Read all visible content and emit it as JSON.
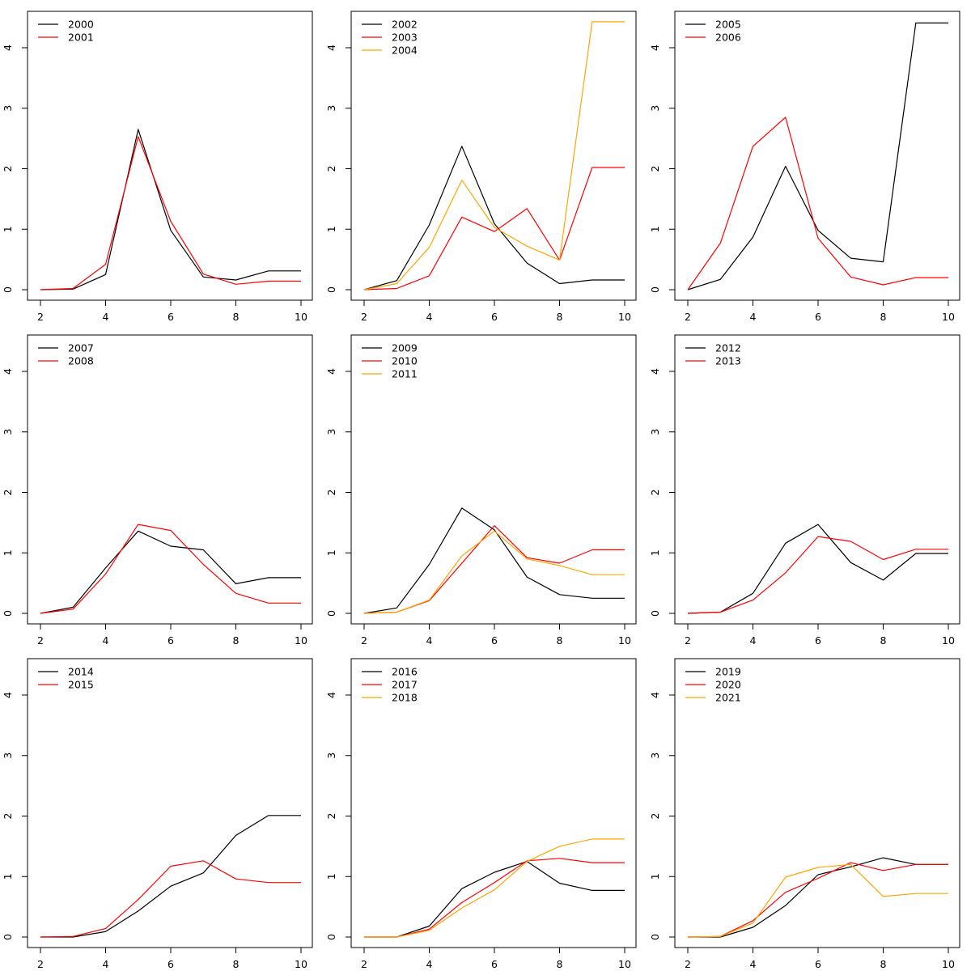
{
  "chart_data": [
    {
      "type": "line",
      "x": [
        2,
        3,
        4,
        5,
        6,
        7,
        8,
        9,
        10
      ],
      "xlim": [
        2,
        10
      ],
      "ylim": [
        0,
        4.4
      ],
      "xticks": [
        "2",
        "4",
        "6",
        "8",
        "10"
      ],
      "yticks": [
        "0",
        "1",
        "2",
        "3",
        "4"
      ],
      "legend_position": "top-left",
      "series": [
        {
          "name": "2000",
          "color": "#000000",
          "values": [
            0,
            0.01,
            0.25,
            2.65,
            0.98,
            0.21,
            0.16,
            0.31,
            0.31
          ]
        },
        {
          "name": "2001",
          "color": "#ff0000",
          "values": [
            0,
            0.02,
            0.42,
            2.53,
            1.13,
            0.26,
            0.09,
            0.14,
            0.14
          ]
        }
      ]
    },
    {
      "type": "line",
      "x": [
        2,
        3,
        4,
        5,
        6,
        7,
        8,
        9,
        10
      ],
      "xlim": [
        2,
        10
      ],
      "ylim": [
        0,
        4.4
      ],
      "xticks": [
        "2",
        "4",
        "6",
        "8",
        "10"
      ],
      "yticks": [
        "0",
        "1",
        "2",
        "3",
        "4"
      ],
      "legend_position": "top-left",
      "series": [
        {
          "name": "2002",
          "color": "#000000",
          "values": [
            0,
            0.15,
            1.07,
            2.37,
            1.09,
            0.44,
            0.1,
            0.16,
            0.16
          ]
        },
        {
          "name": "2003",
          "color": "#ff0000",
          "values": [
            0,
            0.02,
            0.23,
            1.2,
            0.96,
            1.34,
            0.49,
            2.02,
            2.02
          ]
        },
        {
          "name": "2004",
          "color": "#ffa500",
          "values": [
            0,
            0.1,
            0.7,
            1.81,
            1.03,
            0.72,
            0.49,
            4.43,
            4.43
          ]
        }
      ]
    },
    {
      "type": "line",
      "x": [
        2,
        3,
        4,
        5,
        6,
        7,
        8,
        9,
        10
      ],
      "xlim": [
        2,
        10
      ],
      "ylim": [
        0,
        4.4
      ],
      "xticks": [
        "2",
        "4",
        "6",
        "8",
        "10"
      ],
      "yticks": [
        "0",
        "1",
        "2",
        "3",
        "4"
      ],
      "legend_position": "top-left",
      "series": [
        {
          "name": "2005",
          "color": "#000000",
          "values": [
            0,
            0.17,
            0.87,
            2.04,
            0.98,
            0.52,
            0.46,
            4.41,
            4.41
          ]
        },
        {
          "name": "2006",
          "color": "#ff0000",
          "values": [
            0,
            0.77,
            2.37,
            2.85,
            0.85,
            0.21,
            0.08,
            0.2,
            0.2
          ]
        }
      ]
    },
    {
      "type": "line",
      "x": [
        2,
        3,
        4,
        5,
        6,
        7,
        8,
        9,
        10
      ],
      "xlim": [
        2,
        10
      ],
      "ylim": [
        0,
        4.4
      ],
      "xticks": [
        "2",
        "4",
        "6",
        "8",
        "10"
      ],
      "yticks": [
        "0",
        "1",
        "2",
        "3",
        "4"
      ],
      "legend_position": "top-left",
      "series": [
        {
          "name": "2007",
          "color": "#000000",
          "values": [
            0,
            0.1,
            0.75,
            1.36,
            1.11,
            1.05,
            0.49,
            0.59,
            0.59
          ]
        },
        {
          "name": "2008",
          "color": "#ff0000",
          "values": [
            0,
            0.07,
            0.65,
            1.47,
            1.37,
            0.81,
            0.33,
            0.17,
            0.17
          ]
        }
      ]
    },
    {
      "type": "line",
      "x": [
        2,
        3,
        4,
        5,
        6,
        7,
        8,
        9,
        10
      ],
      "xlim": [
        2,
        10
      ],
      "ylim": [
        0,
        4.4
      ],
      "xticks": [
        "2",
        "4",
        "6",
        "8",
        "10"
      ],
      "yticks": [
        "0",
        "1",
        "2",
        "3",
        "4"
      ],
      "legend_position": "top-left",
      "series": [
        {
          "name": "2009",
          "color": "#000000",
          "values": [
            0,
            0.09,
            0.81,
            1.74,
            1.38,
            0.6,
            0.31,
            0.25,
            0.25
          ]
        },
        {
          "name": "2010",
          "color": "#ff0000",
          "values": [
            0,
            0.02,
            0.21,
            0.83,
            1.45,
            0.92,
            0.83,
            1.05,
            1.05
          ]
        },
        {
          "name": "2011",
          "color": "#ffa500",
          "values": [
            0,
            0.02,
            0.22,
            0.95,
            1.36,
            0.9,
            0.79,
            0.64,
            0.64
          ]
        }
      ]
    },
    {
      "type": "line",
      "x": [
        2,
        3,
        4,
        5,
        6,
        7,
        8,
        9,
        10
      ],
      "xlim": [
        2,
        10
      ],
      "ylim": [
        0,
        4.4
      ],
      "xticks": [
        "2",
        "4",
        "6",
        "8",
        "10"
      ],
      "yticks": [
        "0",
        "1",
        "2",
        "3",
        "4"
      ],
      "legend_position": "top-left",
      "series": [
        {
          "name": "2012",
          "color": "#000000",
          "values": [
            0,
            0.02,
            0.33,
            1.16,
            1.47,
            0.84,
            0.55,
            0.99,
            0.99
          ]
        },
        {
          "name": "2013",
          "color": "#ff0000",
          "values": [
            0,
            0.02,
            0.22,
            0.67,
            1.27,
            1.19,
            0.89,
            1.06,
            1.06
          ]
        }
      ]
    },
    {
      "type": "line",
      "x": [
        2,
        3,
        4,
        5,
        6,
        7,
        8,
        9,
        10
      ],
      "xlim": [
        2,
        10
      ],
      "ylim": [
        0,
        4.4
      ],
      "xticks": [
        "2",
        "4",
        "6",
        "8",
        "10"
      ],
      "yticks": [
        "0",
        "1",
        "2",
        "3",
        "4"
      ],
      "legend_position": "top-left",
      "series": [
        {
          "name": "2014",
          "color": "#000000",
          "values": [
            0,
            0,
            0.09,
            0.43,
            0.84,
            1.06,
            1.68,
            2.01,
            2.01
          ]
        },
        {
          "name": "2015",
          "color": "#ff0000",
          "values": [
            0,
            0.01,
            0.14,
            0.62,
            1.17,
            1.26,
            0.96,
            0.9,
            0.9
          ]
        }
      ]
    },
    {
      "type": "line",
      "x": [
        2,
        3,
        4,
        5,
        6,
        7,
        8,
        9,
        10
      ],
      "xlim": [
        2,
        10
      ],
      "ylim": [
        0,
        4.4
      ],
      "xticks": [
        "2",
        "4",
        "6",
        "8",
        "10"
      ],
      "yticks": [
        "0",
        "1",
        "2",
        "3",
        "4"
      ],
      "legend_position": "top-left",
      "series": [
        {
          "name": "2016",
          "color": "#000000",
          "values": [
            0,
            0,
            0.18,
            0.8,
            1.07,
            1.25,
            0.89,
            0.77,
            0.77
          ]
        },
        {
          "name": "2017",
          "color": "#ff0000",
          "values": [
            0,
            0,
            0.13,
            0.57,
            0.9,
            1.26,
            1.3,
            1.23,
            1.23
          ]
        },
        {
          "name": "2018",
          "color": "#ffa500",
          "values": [
            0,
            0,
            0.11,
            0.48,
            0.78,
            1.25,
            1.5,
            1.62,
            1.62
          ]
        }
      ]
    },
    {
      "type": "line",
      "x": [
        2,
        3,
        4,
        5,
        6,
        7,
        8,
        9,
        10
      ],
      "xlim": [
        2,
        10
      ],
      "ylim": [
        0,
        4.4
      ],
      "xticks": [
        "2",
        "4",
        "6",
        "8",
        "10"
      ],
      "yticks": [
        "0",
        "1",
        "2",
        "3",
        "4"
      ],
      "legend_position": "top-left",
      "series": [
        {
          "name": "2019",
          "color": "#000000",
          "values": [
            0,
            0,
            0.16,
            0.52,
            1.03,
            1.16,
            1.31,
            1.2,
            1.2
          ]
        },
        {
          "name": "2020",
          "color": "#ff0000",
          "values": [
            0,
            0.01,
            0.27,
            0.74,
            0.97,
            1.23,
            1.1,
            1.2,
            1.2
          ]
        },
        {
          "name": "2021",
          "color": "#ffa500",
          "values": [
            0,
            0.01,
            0.23,
            0.99,
            1.15,
            1.2,
            0.67,
            0.72,
            0.72
          ]
        }
      ]
    }
  ]
}
